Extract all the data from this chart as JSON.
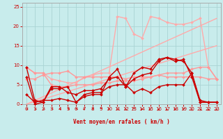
{
  "xlabel": "Vent moyen/en rafales ( km/h )",
  "background_color": "#c8ecec",
  "grid_color": "#aad4d4",
  "xlim": [
    -0.5,
    23.5
  ],
  "ylim": [
    0,
    26
  ],
  "yticks": [
    0,
    5,
    10,
    15,
    20,
    25
  ],
  "xticks": [
    0,
    1,
    2,
    3,
    4,
    5,
    6,
    7,
    8,
    9,
    10,
    11,
    12,
    13,
    14,
    15,
    16,
    17,
    18,
    19,
    20,
    21,
    22,
    23
  ],
  "lines": [
    {
      "x": [
        0,
        23
      ],
      "y": [
        0,
        15
      ],
      "color": "#ffaaaa",
      "lw": 1.0,
      "marker": null,
      "ms": 0,
      "zorder": 2
    },
    {
      "x": [
        0,
        23
      ],
      "y": [
        0,
        22
      ],
      "color": "#ffaaaa",
      "lw": 1.0,
      "marker": null,
      "ms": 0,
      "zorder": 2
    },
    {
      "x": [
        0,
        1,
        2,
        3,
        4,
        5,
        6,
        7,
        8,
        9,
        10,
        11,
        12,
        13,
        14,
        15,
        16,
        17,
        18,
        19,
        20,
        21,
        22,
        23
      ],
      "y": [
        9.5,
        8,
        8,
        6.5,
        6,
        5.5,
        5.5,
        7,
        7.5,
        8,
        8,
        22.5,
        22,
        18,
        17,
        22.5,
        22,
        21,
        20.5,
        20.5,
        21,
        22,
        9.5,
        6.5
      ],
      "color": "#ffaaaa",
      "lw": 1.0,
      "marker": "D",
      "ms": 2.0,
      "zorder": 3
    },
    {
      "x": [
        0,
        1,
        2,
        3,
        4,
        5,
        6,
        7,
        8,
        9,
        10,
        11,
        12,
        13,
        14,
        15,
        16,
        17,
        18,
        19,
        20,
        21,
        22,
        23
      ],
      "y": [
        9.5,
        8,
        8,
        5,
        4.5,
        4.5,
        5,
        5,
        5,
        5.5,
        5.5,
        6,
        6,
        6,
        6.5,
        7,
        7.5,
        8,
        8,
        8,
        9,
        9.5,
        9.5,
        6.5
      ],
      "color": "#ff9999",
      "lw": 1.0,
      "marker": "D",
      "ms": 2.0,
      "zorder": 3
    },
    {
      "x": [
        0,
        1,
        2,
        3,
        4,
        5,
        6,
        7,
        8,
        9,
        10,
        11,
        12,
        13,
        14,
        15,
        16,
        17,
        18,
        19,
        20,
        21,
        22,
        23
      ],
      "y": [
        6.5,
        6.5,
        7.5,
        8,
        8,
        8.5,
        7,
        7,
        7,
        7,
        7,
        7,
        6.5,
        7,
        7,
        7,
        7.5,
        7,
        7,
        7,
        7,
        7,
        6.5,
        6.5
      ],
      "color": "#ff9999",
      "lw": 1.0,
      "marker": "D",
      "ms": 2.0,
      "zorder": 3
    },
    {
      "x": [
        0,
        1,
        2,
        3,
        4,
        5,
        6,
        7,
        8,
        9,
        10,
        11,
        12,
        13,
        14,
        15,
        16,
        17,
        18,
        19,
        20,
        21,
        22,
        23
      ],
      "y": [
        9.5,
        1,
        0.5,
        4,
        4,
        4.5,
        0.5,
        2,
        2.5,
        2.5,
        7,
        9,
        4.5,
        8,
        9.5,
        9,
        11.5,
        12,
        11,
        11.5,
        7,
        0.5,
        0.5,
        0.5
      ],
      "color": "#cc0000",
      "lw": 1.0,
      "marker": "D",
      "ms": 2.0,
      "zorder": 5
    },
    {
      "x": [
        0,
        1,
        2,
        3,
        4,
        5,
        6,
        7,
        8,
        9,
        10,
        11,
        12,
        13,
        14,
        15,
        16,
        17,
        18,
        19,
        20,
        21,
        22,
        23
      ],
      "y": [
        7,
        0,
        0.5,
        4.5,
        4.5,
        3,
        2.5,
        3.5,
        3.5,
        4,
        6.5,
        7,
        4.5,
        6.5,
        7.5,
        8,
        11,
        12,
        11.5,
        11,
        8,
        1,
        0.5,
        0.5
      ],
      "color": "#cc0000",
      "lw": 1.0,
      "marker": "D",
      "ms": 2.0,
      "zorder": 5
    },
    {
      "x": [
        0,
        1,
        2,
        3,
        4,
        5,
        6,
        7,
        8,
        9,
        10,
        11,
        12,
        13,
        14,
        15,
        16,
        17,
        18,
        19,
        20,
        21,
        22,
        23
      ],
      "y": [
        2.5,
        0.5,
        1,
        1,
        1.5,
        1,
        0.5,
        2.5,
        3,
        3,
        4.5,
        5,
        5,
        3,
        4,
        3,
        4.5,
        5,
        5,
        5,
        8,
        0.5,
        0.5,
        0.5
      ],
      "color": "#cc0000",
      "lw": 1.0,
      "marker": "D",
      "ms": 2.0,
      "zorder": 4
    }
  ],
  "wind_arrows": {
    "x": [
      0,
      1,
      2,
      3,
      4,
      5,
      6,
      7,
      8,
      9,
      10,
      11,
      12,
      13,
      14,
      15,
      16,
      17,
      18,
      19,
      20,
      21,
      22,
      23
    ],
    "angles": [
      180,
      210,
      210,
      210,
      180,
      180,
      200,
      230,
      250,
      265,
      295,
      310,
      295,
      270,
      70,
      75,
      90,
      90,
      70,
      65,
      90,
      95,
      90,
      90
    ]
  }
}
